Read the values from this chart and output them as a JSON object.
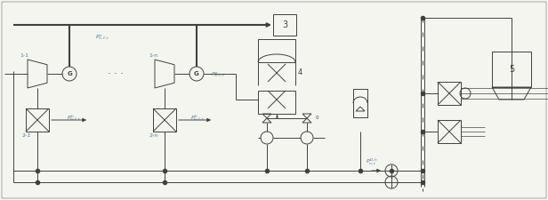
{
  "bg_color": "#f5f5f0",
  "line_color": "#404040",
  "label_color": "#4a7a96",
  "thick_lw": 1.5,
  "thin_lw": 0.7,
  "fig_w": 6.16,
  "fig_h": 2.25,
  "dpi": 100
}
